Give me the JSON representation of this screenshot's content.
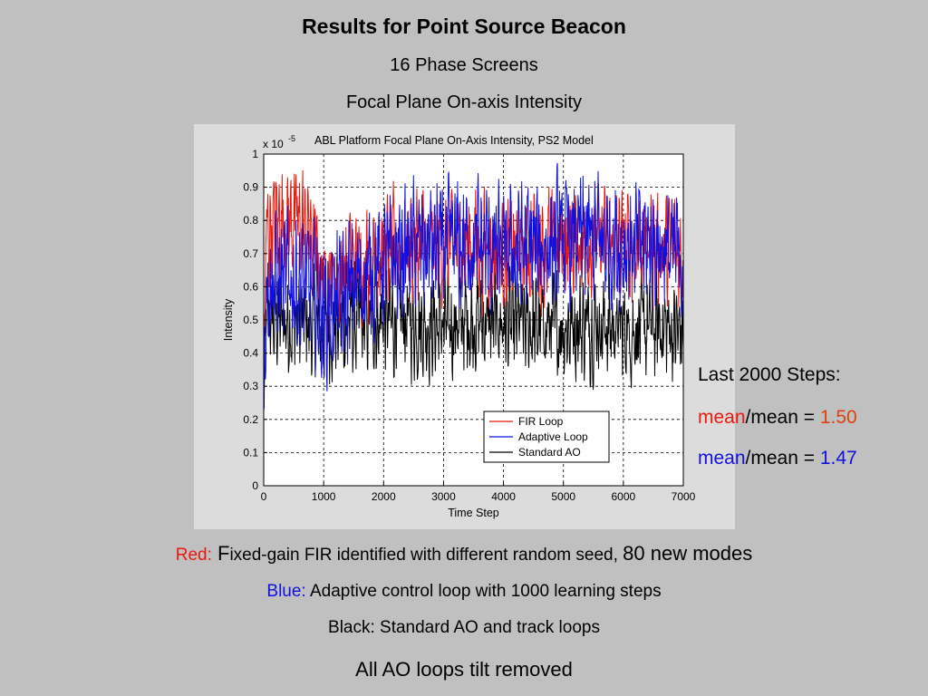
{
  "slide": {
    "title": "Results for Point Source Beacon",
    "subtitle1": "16 Phase Screens",
    "subtitle2": "Focal Plane On-axis Intensity"
  },
  "side_notes": {
    "heading": "Last 2000 Steps:",
    "line1_word": "mean",
    "line1_rest": "/mean = ",
    "line1_value": "1.50",
    "line2_word": "mean",
    "line2_rest": "/mean = ",
    "line2_value": "1.47"
  },
  "captions": {
    "red_label": "Red:",
    "red_text_big": " F",
    "red_text": "ixed-gain FIR identified with different random seed, ",
    "red_text_tail": "80 new modes",
    "blue_label": "Blue:",
    "blue_text": " Adaptive control loop with 1000 learning steps",
    "black_text": "Black: Standard AO and track loops",
    "footer": "All AO loops tilt removed"
  },
  "colors": {
    "red": "#e8190f",
    "blue": "#1010e0",
    "black": "#000000",
    "accent_orange": "#e04010"
  },
  "chart_data": {
    "type": "line",
    "title": "ABL Platform Focal Plane On-Axis Intensity, PS2 Model",
    "xlabel": "Time Step",
    "ylabel": "Intensity",
    "scale_label": "x 10",
    "scale_exp": "-5",
    "xlim": [
      0,
      7000
    ],
    "ylim": [
      0,
      1
    ],
    "xticks": [
      "0",
      "1000",
      "2000",
      "3000",
      "4000",
      "5000",
      "6000",
      "7000"
    ],
    "yticks": [
      "0",
      "0.1",
      "0.2",
      "0.3",
      "0.4",
      "0.5",
      "0.6",
      "0.7",
      "0.8",
      "0.9",
      "1"
    ],
    "grid": true,
    "legend_position": "lower-right",
    "series": [
      {
        "name": "FIR Loop",
        "color": "#e8190f",
        "x": [
          0,
          250,
          500,
          750,
          1000,
          1500,
          2000,
          2500,
          3000,
          3500,
          4000,
          4500,
          5000,
          5500,
          6000,
          6500,
          7000
        ],
        "y": [
          0.75,
          0.8,
          0.8,
          0.78,
          0.62,
          0.67,
          0.7,
          0.73,
          0.72,
          0.73,
          0.7,
          0.72,
          0.73,
          0.74,
          0.72,
          0.73,
          0.69
        ]
      },
      {
        "name": "Adaptive Loop",
        "color": "#1010e0",
        "x": [
          0,
          250,
          500,
          750,
          1000,
          1500,
          2000,
          2500,
          3000,
          3500,
          4000,
          4500,
          5000,
          5500,
          6000,
          6500,
          7000
        ],
        "y": [
          0.6,
          0.62,
          0.62,
          0.6,
          0.52,
          0.6,
          0.67,
          0.71,
          0.72,
          0.73,
          0.7,
          0.72,
          0.74,
          0.74,
          0.72,
          0.73,
          0.69
        ]
      },
      {
        "name": "Standard AO",
        "color": "#000000",
        "x": [
          0,
          250,
          500,
          750,
          1000,
          1500,
          2000,
          2500,
          3000,
          3500,
          4000,
          4500,
          5000,
          5500,
          6000,
          6500,
          7000
        ],
        "y": [
          0.5,
          0.5,
          0.49,
          0.48,
          0.47,
          0.49,
          0.5,
          0.49,
          0.48,
          0.5,
          0.49,
          0.48,
          0.48,
          0.49,
          0.47,
          0.48,
          0.46
        ]
      }
    ]
  }
}
